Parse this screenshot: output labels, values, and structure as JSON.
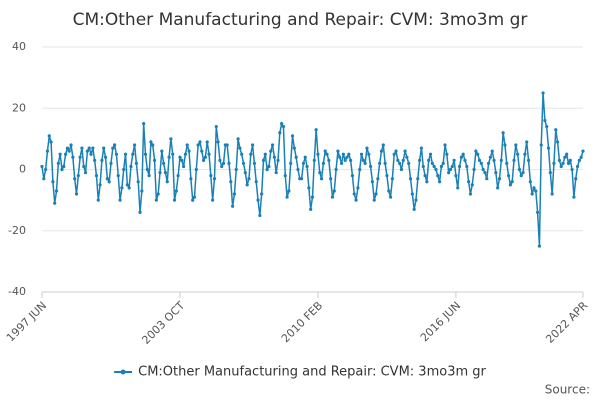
{
  "chart_data": {
    "type": "line",
    "title": "CM:Other Manufacturing and Repair: CVM: 3mo3m gr",
    "source": "Source:",
    "categories": [
      "1997 JUN",
      null,
      null,
      null,
      null,
      null,
      null,
      null,
      null,
      null,
      null,
      null,
      null,
      null,
      null,
      null,
      null,
      null,
      null,
      null,
      null,
      null,
      null,
      null,
      null,
      null,
      null,
      null,
      null,
      null,
      null,
      null,
      null,
      null,
      null,
      null,
      null,
      null,
      null,
      null,
      null,
      null,
      null,
      null,
      null,
      null,
      null,
      null,
      null,
      null,
      null,
      null,
      null,
      null,
      null,
      null,
      null,
      null,
      null,
      null,
      null,
      null,
      null,
      null,
      null,
      null,
      null,
      null,
      null,
      null,
      null,
      null,
      null,
      null,
      null,
      null,
      "2003 OCT",
      null,
      null,
      null,
      null,
      null,
      null,
      null,
      null,
      null,
      null,
      null,
      null,
      null,
      null,
      null,
      null,
      null,
      null,
      null,
      null,
      null,
      null,
      null,
      null,
      null,
      null,
      null,
      null,
      null,
      null,
      null,
      null,
      null,
      null,
      null,
      null,
      null,
      null,
      null,
      null,
      null,
      null,
      null,
      null,
      null,
      null,
      null,
      null,
      null,
      null,
      null,
      null,
      null,
      null,
      null,
      null,
      null,
      null,
      null,
      null,
      null,
      null,
      null,
      null,
      null,
      null,
      null,
      null,
      null,
      null,
      null,
      null,
      null,
      null,
      null,
      "2010 FEB",
      null,
      null,
      null,
      null,
      null,
      null,
      null,
      null,
      null,
      null,
      null,
      null,
      null,
      null,
      null,
      null,
      null,
      null,
      null,
      null,
      null,
      null,
      null,
      null,
      null,
      null,
      null,
      null,
      null,
      null,
      null,
      null,
      null,
      null,
      null,
      null,
      null,
      null,
      null,
      null,
      null,
      null,
      null,
      null,
      null,
      null,
      null,
      null,
      null,
      null,
      null,
      null,
      null,
      null,
      null,
      null,
      null,
      null,
      null,
      null,
      null,
      null,
      null,
      null,
      null,
      null,
      null,
      null,
      null,
      null,
      null,
      null,
      null,
      null,
      null,
      "2016 JUN",
      null,
      null,
      null,
      null,
      null,
      null,
      null,
      null,
      null,
      null,
      null,
      null,
      null,
      null,
      null,
      null,
      null,
      null,
      null,
      null,
      null,
      null,
      null,
      null,
      null,
      null,
      null,
      null,
      null,
      null,
      null,
      null,
      null,
      null,
      null,
      null,
      null,
      null,
      null,
      null,
      null,
      null,
      null,
      null,
      null,
      null,
      null,
      null,
      null,
      null,
      null,
      null,
      null,
      null,
      null,
      null,
      null,
      null,
      null,
      null,
      null,
      null,
      null,
      null,
      null,
      null,
      null,
      null,
      null,
      "2022 APR"
    ],
    "series": [
      {
        "name": "CM:Other Manufacturing and Repair: CVM: 3mo3m gr",
        "color": "#1a80b6",
        "values": [
          1,
          -3,
          0,
          6,
          11,
          9,
          -4,
          -11,
          -7,
          2,
          5,
          0,
          1,
          5,
          7,
          6,
          8,
          4,
          -3,
          -8,
          -2,
          4,
          7,
          1,
          -1,
          6,
          7,
          5,
          7,
          3,
          -2,
          -10,
          -5,
          3,
          7,
          4,
          -3,
          -4,
          2,
          7,
          8,
          5,
          -2,
          -10,
          -6,
          0,
          5,
          -5,
          -6,
          1,
          5,
          8,
          2,
          -4,
          -14,
          -7,
          15,
          5,
          0,
          -2,
          9,
          8,
          3,
          -10,
          -8,
          -1,
          6,
          2,
          -1,
          -4,
          4,
          10,
          5,
          -10,
          -7,
          -2,
          4,
          3,
          1,
          5,
          8,
          6,
          -3,
          -10,
          -9,
          0,
          8,
          9,
          6,
          3,
          4,
          9,
          5,
          -2,
          -10,
          -3,
          14,
          9,
          3,
          1,
          2,
          8,
          8,
          2,
          -4,
          -12,
          -8,
          0,
          10,
          7,
          5,
          2,
          -1,
          -5,
          -3,
          5,
          8,
          2,
          -4,
          -10,
          -15,
          -8,
          3,
          5,
          0,
          1,
          6,
          8,
          4,
          -1,
          3,
          12,
          15,
          14,
          -2,
          -9,
          -7,
          2,
          11,
          7,
          4,
          0,
          -3,
          -3,
          2,
          4,
          1,
          -6,
          -13,
          -9,
          3,
          13,
          5,
          -1,
          -3,
          2,
          6,
          5,
          3,
          -3,
          -9,
          -7,
          0,
          6,
          4,
          2,
          5,
          3,
          4,
          5,
          3,
          -2,
          -8,
          -10,
          -6,
          0,
          5,
          3,
          2,
          7,
          5,
          1,
          -4,
          -10,
          -8,
          -3,
          2,
          6,
          8,
          2,
          -2,
          -7,
          -9,
          -3,
          5,
          6,
          3,
          2,
          0,
          3,
          6,
          4,
          2,
          -3,
          -8,
          -13,
          -10,
          -3,
          3,
          7,
          1,
          -2,
          -4,
          3,
          5,
          2,
          1,
          0,
          -2,
          -4,
          1,
          2,
          8,
          5,
          -1,
          0,
          1,
          3,
          -2,
          -6,
          1,
          4,
          5,
          3,
          1,
          -4,
          -8,
          -5,
          0,
          6,
          5,
          3,
          2,
          0,
          -1,
          -3,
          2,
          4,
          6,
          3,
          -1,
          -6,
          -3,
          3,
          12,
          8,
          2,
          -2,
          -5,
          -4,
          3,
          8,
          5,
          0,
          -2,
          -1,
          5,
          9,
          3,
          -4,
          -8,
          -6,
          -7,
          -14,
          -25,
          8,
          25,
          16,
          14,
          7,
          -1,
          -8,
          2,
          13,
          9,
          3,
          1,
          2,
          4,
          5,
          2,
          3,
          0,
          -9,
          -3,
          1,
          3,
          4,
          6
        ]
      }
    ],
    "ylim": [
      -40,
      40
    ],
    "yticks": [
      -40,
      -20,
      0,
      20,
      40
    ],
    "grid": true
  }
}
